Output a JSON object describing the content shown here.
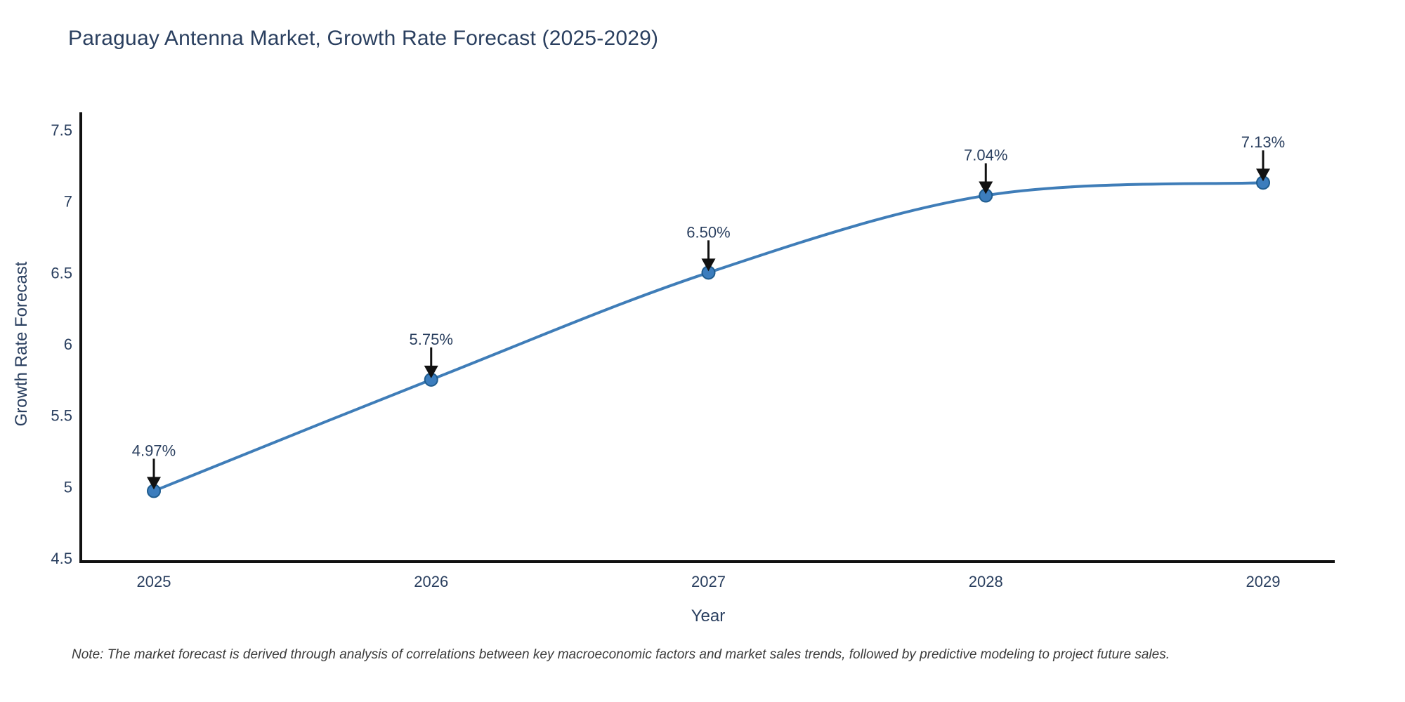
{
  "page": {
    "background": "#ffffff"
  },
  "chart_data": {
    "type": "line",
    "title": "Paraguay Antenna Market, Growth Rate Forecast (2025-2029)",
    "categories": [
      "2025",
      "2026",
      "2027",
      "2028",
      "2029"
    ],
    "values": [
      4.97,
      5.75,
      6.5,
      7.04,
      7.13
    ],
    "point_labels": [
      "4.97%",
      "5.75%",
      "6.50%",
      "7.04%",
      "7.13%"
    ],
    "xlabel": "Year",
    "ylabel": "Growth Rate Forecast",
    "ylim": [
      4.5,
      7.5
    ],
    "yticks": [
      4.5,
      5,
      5.5,
      6,
      6.5,
      7,
      7.5
    ],
    "ytick_labels": [
      "4.5",
      "5",
      "5.5",
      "6",
      "6.5",
      "7",
      "7.5"
    ],
    "line_shape": "spline",
    "grid": "off",
    "legend": "off",
    "annotations": "down-arrow-per-point",
    "colors": {
      "line": "#3f7db8",
      "marker_fill": "#3c7dbd",
      "marker_stroke": "#1f5c8e",
      "axis": "#111111",
      "text": "#2a3f5f",
      "arrow": "#111111",
      "note_text": "#3b3b3b",
      "title_text": "#2a3f5f",
      "background": "#ffffff"
    },
    "note": "Note: The market forecast is derived through analysis of correlations between key macroeconomic factors and market sales trends, followed by predictive modeling to project future sales."
  }
}
